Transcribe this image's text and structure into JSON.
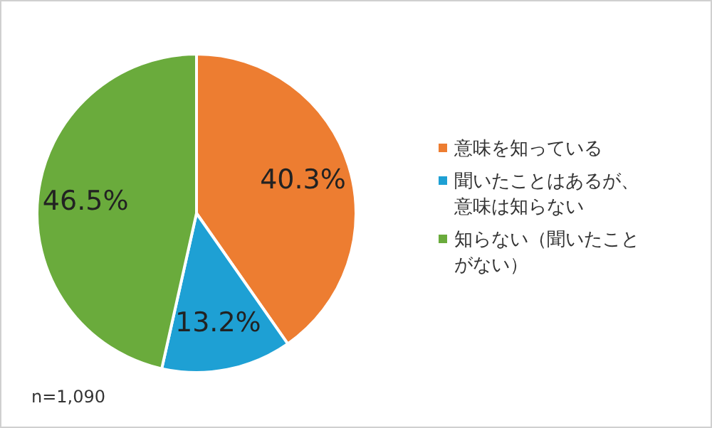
{
  "chart_data": {
    "type": "pie",
    "categories": [
      "意味を知っている",
      "聞いたことはあるが、意味は知らない",
      "知らない（聞いたことがない）"
    ],
    "values": [
      40.3,
      13.2,
      46.5
    ],
    "colors": [
      "#ed7d31",
      "#1ea0d4",
      "#6aab3c"
    ],
    "value_labels": [
      "40.3%",
      "13.2%",
      "46.5%"
    ],
    "legend": "right",
    "annotations": [
      "n=1,090"
    ]
  }
}
